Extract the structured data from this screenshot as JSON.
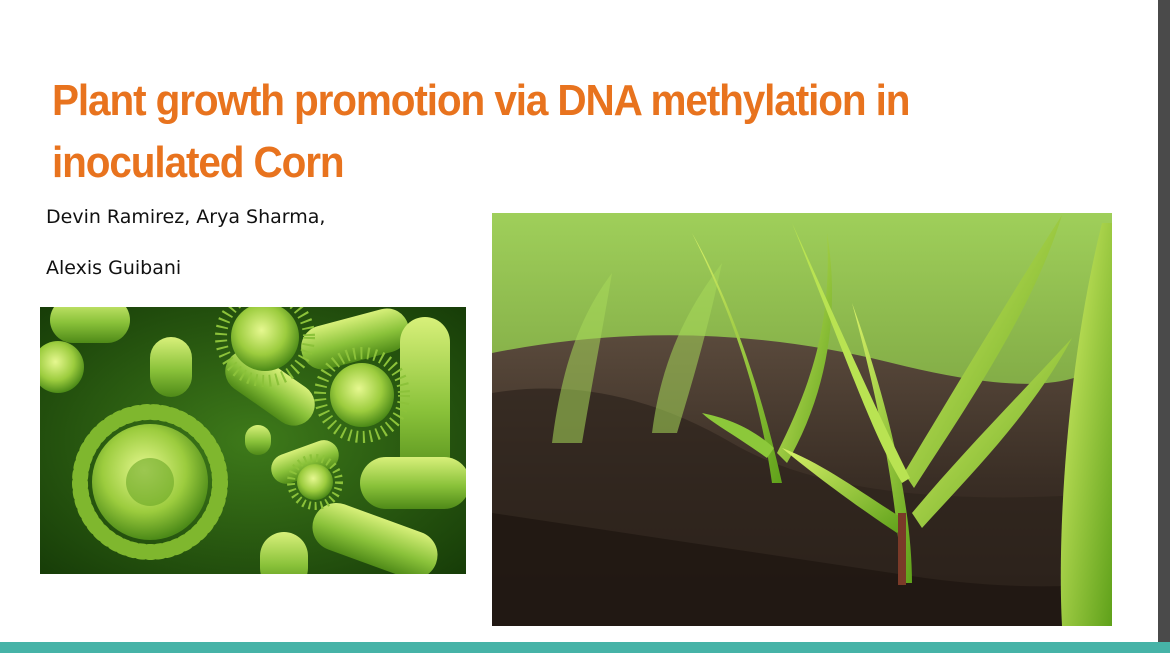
{
  "slide": {
    "title": "Plant growth promotion via DNA methylation in inoculated Corn",
    "authors": [
      "Devin Ramirez, Arya Sharma,",
      "Alexis Guibani"
    ]
  },
  "colors": {
    "title": "#e8731e",
    "accent_strip": "#46b3a7",
    "background": "#ffffff"
  },
  "images": {
    "left": "bacteria-illustration",
    "right": "corn-seedlings-photo"
  }
}
